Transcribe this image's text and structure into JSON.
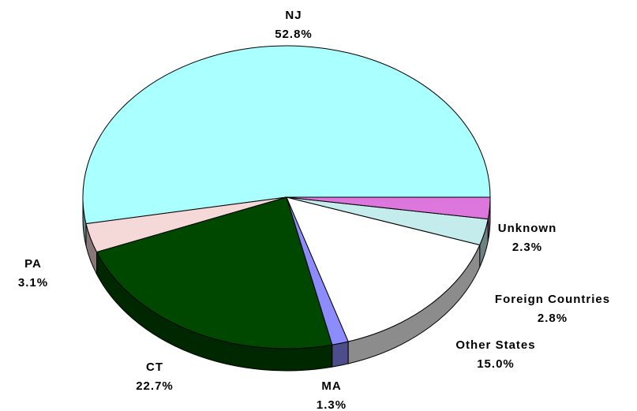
{
  "chart_data": {
    "type": "pie",
    "categories": [
      "NJ",
      "PA",
      "CT",
      "MA",
      "Other States",
      "Foreign Countries",
      "Unknown"
    ],
    "values": [
      52.8,
      3.1,
      22.7,
      1.3,
      15.0,
      2.8,
      2.3
    ],
    "value_labels": [
      "52.8%",
      "3.1%",
      "22.7%",
      "1.3%",
      "15.0%",
      "2.8%",
      "2.3%"
    ],
    "colors": [
      "#aaffff",
      "#f5d8d8",
      "#004800",
      "#8c8cff",
      "#ffffff",
      "#c4ecec",
      "#dd77dd"
    ]
  }
}
